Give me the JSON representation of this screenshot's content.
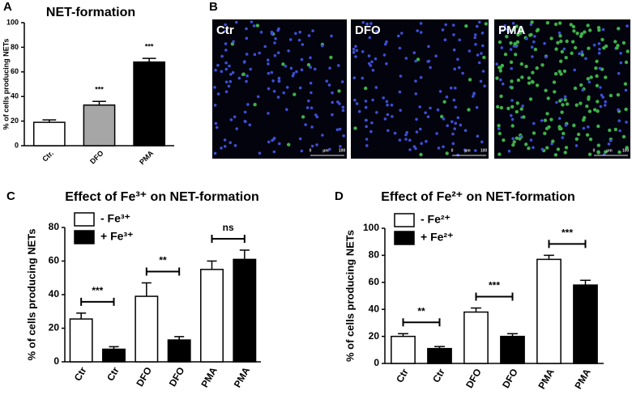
{
  "chart_data": [
    {
      "type": "bar",
      "panel": "A",
      "title": "NET-formation",
      "y_label": "% of cells producing NETs",
      "categories": [
        "Ctr.",
        "DFO",
        "PMA"
      ],
      "series": [
        {
          "values": [
            19,
            33,
            68
          ],
          "errors": [
            2,
            3,
            3
          ],
          "colors": [
            "#ffffff",
            "#a6a6a6",
            "#000000"
          ]
        }
      ],
      "annotations": [
        null,
        "***",
        "***"
      ],
      "ylim": [
        0,
        100
      ],
      "yticks": [
        0,
        20,
        40,
        60,
        80,
        100
      ]
    },
    {
      "type": "bar",
      "panel": "C",
      "title": "Effect of Fe³⁺ on NET-formation",
      "y_label": "% of cells producing NETs",
      "categories": [
        "Ctr",
        "Ctr",
        "DFO",
        "DFO",
        "PMA",
        "PMA"
      ],
      "series": [
        {
          "name": "- Fe³⁺",
          "color": "#ffffff",
          "values": [
            25.5,
            null,
            39,
            null,
            55,
            null
          ],
          "errors": [
            3.5,
            null,
            8,
            null,
            5,
            null
          ]
        },
        {
          "name": "+ Fe³⁺",
          "color": "#000000",
          "values": [
            null,
            7.5,
            null,
            13,
            null,
            61
          ],
          "errors": [
            null,
            1.5,
            null,
            2,
            null,
            5.5
          ]
        }
      ],
      "annotations": [
        "***",
        "**",
        "ns"
      ],
      "ylim": [
        0,
        80
      ],
      "yticks": [
        0,
        20,
        40,
        60,
        80
      ]
    },
    {
      "type": "bar",
      "panel": "D",
      "title": "Effect of Fe²⁺ on NET-formation",
      "y_label": "% of cells producing NETs",
      "categories": [
        "Ctr",
        "Ctr",
        "DFO",
        "DFO",
        "PMA",
        "PMA"
      ],
      "series": [
        {
          "name": "- Fe²⁺",
          "color": "#ffffff",
          "values": [
            20,
            null,
            38,
            null,
            77,
            null
          ],
          "errors": [
            2,
            null,
            3,
            null,
            3,
            null
          ]
        },
        {
          "name": "+ Fe²⁺",
          "color": "#000000",
          "values": [
            null,
            11,
            null,
            20,
            null,
            58
          ],
          "errors": [
            null,
            1.5,
            null,
            2,
            null,
            3.5
          ]
        }
      ],
      "annotations": [
        "**",
        "***",
        "***"
      ],
      "ylim": [
        0,
        100
      ],
      "yticks": [
        0,
        20,
        40,
        60,
        80,
        100
      ]
    }
  ],
  "image_panel": {
    "panel": "B",
    "labels": [
      "Ctr",
      "DFO",
      "PMA"
    ],
    "scale_labels": [
      "0",
      "μm",
      "100"
    ]
  }
}
